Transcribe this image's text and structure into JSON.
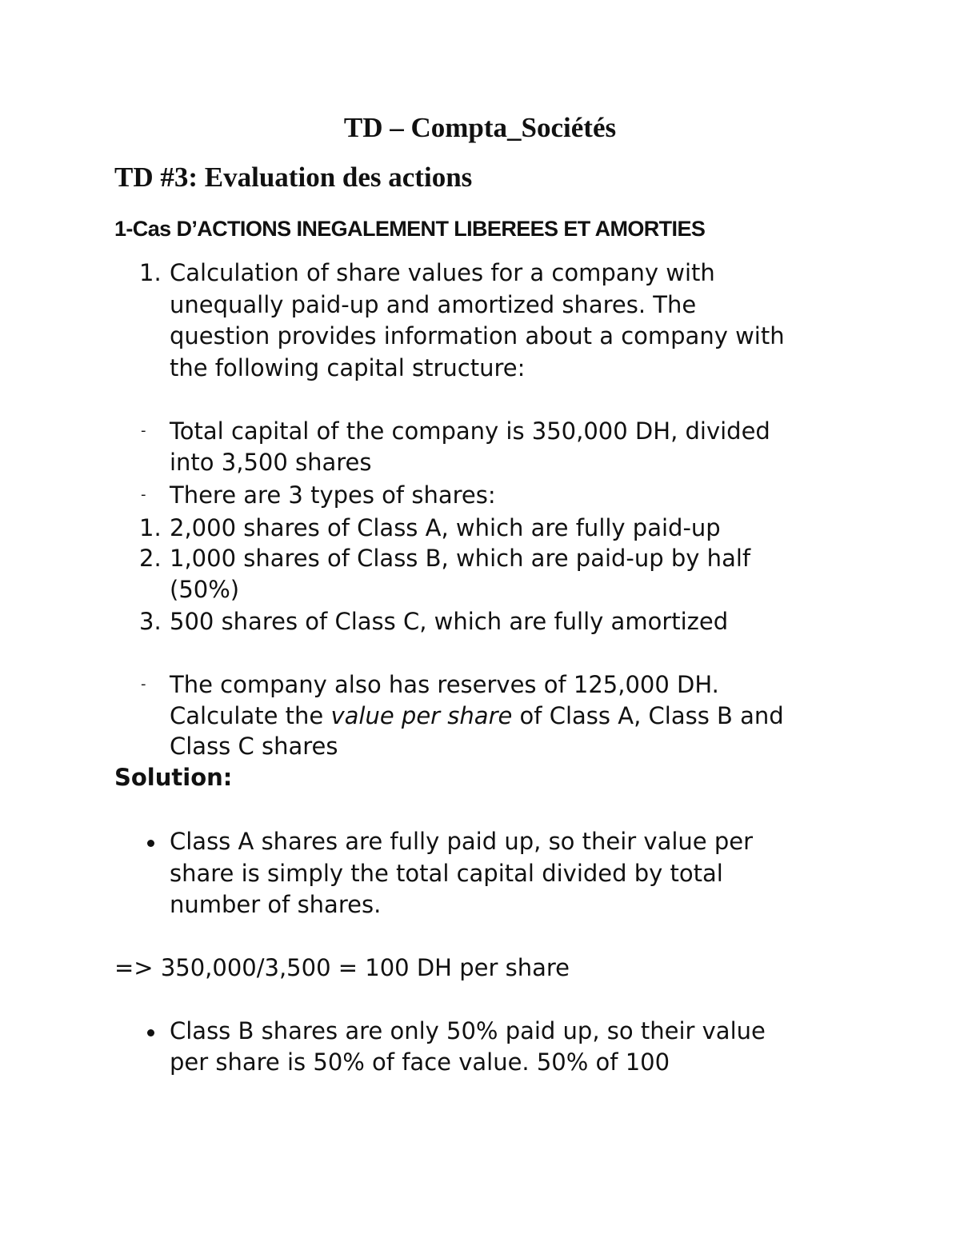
{
  "title": "TD – Compta_Sociétés",
  "subtitle": "TD #3: Evaluation des actions",
  "section_heading": "1-Cas D’ACTIONS INEGALEMENT LIBEREES ET AMORTIES",
  "question": {
    "marker": "1.",
    "lines": [
      "Calculation of share values for a company with",
      "unequally paid-up and amortized shares. The",
      "question provides information about a company with",
      "the following capital structure:"
    ]
  },
  "facts": {
    "capital_marker": "-",
    "capital_lines": [
      "Total capital of the company is 350,000 DH, divided",
      "into 3,500 shares"
    ],
    "types_marker": "-",
    "types_line": "There are 3 types of shares:",
    "types": [
      {
        "marker": "1.",
        "lines": [
          "2,000 shares of Class A, which are fully paid-up"
        ]
      },
      {
        "marker": "2.",
        "lines": [
          "1,000 shares of Class B, which are paid-up by half",
          "(50%)"
        ]
      },
      {
        "marker": "3.",
        "lines": [
          "500 shares of Class C, which are fully amortized"
        ]
      }
    ],
    "reserves_marker": "-",
    "reserves_line": "The company also has reserves of 125,000 DH.",
    "task_prefix": "Calculate the ",
    "task_italic": "value per share",
    "task_suffix": " of Class A, Class B and",
    "task_line2": "Class C shares"
  },
  "solution": {
    "label": "Solution:",
    "class_a_lines": [
      "Class A shares are fully paid up, so their value per",
      "share is simply the total capital divided by total",
      "number of shares."
    ],
    "class_a_result": "=> 350,000/3,500 = 100 DH per share",
    "class_b_lines": [
      "Class B shares are only 50% paid up, so their value",
      "per share is 50% of face value. 50% of 100"
    ]
  }
}
